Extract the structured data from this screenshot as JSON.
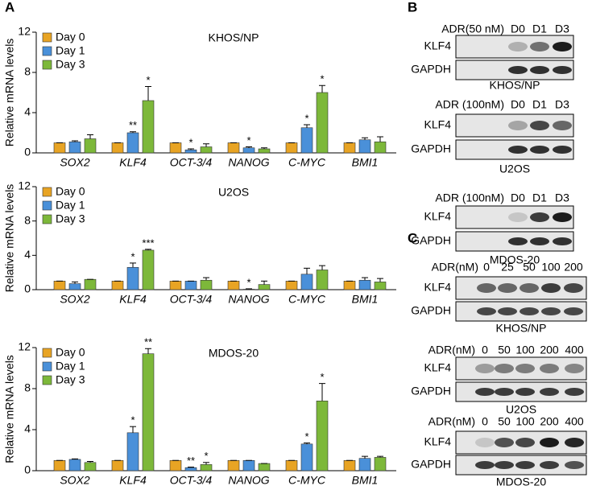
{
  "panel_labels": [
    "A",
    "B",
    "C"
  ],
  "chart_data": [
    {
      "type": "bar",
      "title": "KHOS/NP",
      "y_label": "Relative mRNA levels",
      "categories": [
        "SOX2",
        "KLF4",
        "OCT-3/4",
        "NANOG",
        "C-MYC",
        "BMI1"
      ],
      "category_colors": [
        "#000000",
        "#d0202a",
        "#000000",
        "#000000",
        "#d0202a",
        "#000000"
      ],
      "ylim": [
        0,
        12
      ],
      "yticks": [
        0,
        4,
        8,
        12
      ],
      "series": [
        {
          "name": "Day 0",
          "color": "#e8a424",
          "values": [
            1,
            1,
            1,
            1,
            1,
            1
          ],
          "errors": [
            0,
            0,
            0,
            0,
            0,
            0
          ],
          "significance": [
            null,
            null,
            null,
            null,
            null,
            null
          ]
        },
        {
          "name": "Day 1",
          "color": "#4a90d9",
          "values": [
            1.1,
            2.0,
            0.3,
            0.5,
            2.5,
            1.3
          ],
          "errors": [
            0.1,
            0.1,
            0.1,
            0.1,
            0.3,
            0.2
          ],
          "significance": [
            null,
            "**",
            "*",
            "*",
            "*",
            null
          ]
        },
        {
          "name": "Day 3",
          "color": "#7db83a",
          "values": [
            1.4,
            5.2,
            0.6,
            0.4,
            6.0,
            1.1
          ],
          "errors": [
            0.4,
            1.4,
            0.3,
            0.1,
            0.7,
            0.5
          ],
          "significance": [
            null,
            "*",
            null,
            null,
            "*",
            null
          ]
        }
      ]
    },
    {
      "type": "bar",
      "title": "U2OS",
      "y_label": "Relative mRNA levels",
      "categories": [
        "SOX2",
        "KLF4",
        "OCT-3/4",
        "NANOG",
        "C-MYC",
        "BMI1"
      ],
      "category_colors": [
        "#000000",
        "#d0202a",
        "#000000",
        "#000000",
        "#d0202a",
        "#000000"
      ],
      "ylim": [
        0,
        12
      ],
      "yticks": [
        0,
        4,
        8,
        12
      ],
      "series": [
        {
          "name": "Day 0",
          "color": "#e8a424",
          "values": [
            1,
            1,
            1,
            1,
            1,
            1
          ],
          "errors": [
            0,
            0,
            0,
            0,
            0,
            0
          ],
          "significance": [
            null,
            null,
            null,
            null,
            null,
            null
          ]
        },
        {
          "name": "Day 1",
          "color": "#4a90d9",
          "values": [
            0.7,
            2.6,
            1.0,
            0.05,
            1.8,
            1.1
          ],
          "errors": [
            0.2,
            0.5,
            0,
            0.05,
            0.7,
            0.3
          ],
          "significance": [
            null,
            "*",
            null,
            "*",
            null,
            null
          ]
        },
        {
          "name": "Day 3",
          "color": "#7db83a",
          "values": [
            1.2,
            4.6,
            1.1,
            0.6,
            2.3,
            0.9
          ],
          "errors": [
            0,
            0.1,
            0.3,
            0.4,
            0.5,
            0.4
          ],
          "significance": [
            null,
            "***",
            null,
            null,
            null,
            null
          ]
        }
      ]
    },
    {
      "type": "bar",
      "title": "MDOS-20",
      "y_label": "Relative mRNA levels",
      "categories": [
        "SOX2",
        "KLF4",
        "OCT-3/4",
        "NANOG",
        "C-MYC",
        "BMI1"
      ],
      "category_colors": [
        "#000000",
        "#d0202a",
        "#000000",
        "#000000",
        "#d0202a",
        "#000000"
      ],
      "ylim": [
        0,
        12
      ],
      "yticks": [
        0,
        4,
        8,
        12
      ],
      "series": [
        {
          "name": "Day 0",
          "color": "#e8a424",
          "values": [
            1,
            1,
            1,
            1,
            1,
            1
          ],
          "errors": [
            0,
            0,
            0,
            0,
            0,
            0
          ],
          "significance": [
            null,
            null,
            null,
            null,
            null,
            null
          ]
        },
        {
          "name": "Day 1",
          "color": "#4a90d9",
          "values": [
            1.1,
            3.7,
            0.3,
            1.0,
            2.6,
            1.2
          ],
          "errors": [
            0.05,
            0.6,
            0.05,
            0,
            0.1,
            0.2
          ],
          "significance": [
            null,
            "*",
            "**",
            null,
            "*",
            null
          ]
        },
        {
          "name": "Day 3",
          "color": "#7db83a",
          "values": [
            0.8,
            11.4,
            0.6,
            0.7,
            6.8,
            1.3
          ],
          "errors": [
            0.1,
            0.5,
            0.2,
            0,
            1.7,
            0.1
          ],
          "significance": [
            null,
            "**",
            "*",
            null,
            "*",
            null
          ]
        }
      ]
    }
  ],
  "blots": [
    {
      "header": "ADR(50 nM)",
      "lanes": [
        "D0",
        "D1",
        "D3"
      ],
      "rows": [
        "KLF4",
        "GAPDH"
      ],
      "cell_line": "KHOS/NP"
    },
    {
      "header": "ADR (100nM)",
      "lanes": [
        "D0",
        "D1",
        "D3"
      ],
      "rows": [
        "KLF4",
        "GAPDH"
      ],
      "cell_line": "U2OS"
    },
    {
      "header": "ADR (100nM)",
      "lanes": [
        "D0",
        "D1",
        "D3"
      ],
      "rows": [
        "KLF4",
        "GAPDH"
      ],
      "cell_line": "MDOS-20"
    },
    {
      "header": "ADR(nM)",
      "lanes": [
        "0",
        "25",
        "50",
        "100",
        "200"
      ],
      "rows": [
        "KLF4",
        "GAPDH"
      ],
      "cell_line": "KHOS/NP"
    },
    {
      "header": "ADR(nM)",
      "lanes": [
        "0",
        "50",
        "100",
        "200",
        "400"
      ],
      "rows": [
        "KLF4",
        "GAPDH"
      ],
      "cell_line": "U2OS"
    },
    {
      "header": "ADR(nM)",
      "lanes": [
        "0",
        "50",
        "100",
        "200",
        "400"
      ],
      "rows": [
        "KLF4",
        "GAPDH"
      ],
      "cell_line": "MDOS-20"
    }
  ]
}
